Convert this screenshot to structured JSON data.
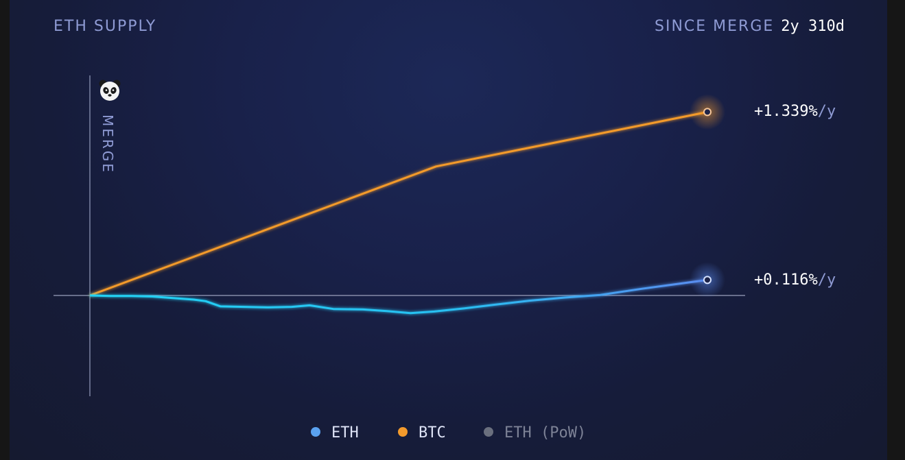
{
  "header": {
    "title": "ETH SUPPLY",
    "since_label": "SINCE MERGE",
    "since_value": "2y 310d"
  },
  "chart_data": {
    "type": "line",
    "title": "ETH SUPPLY",
    "vertical_marker": "MERGE",
    "x_range_days": [
      0,
      1040
    ],
    "y_range_pct": [
      -1.0,
      4.5
    ],
    "legend_placement": "bottom",
    "grid": false,
    "series": [
      {
        "name": "ETH",
        "color": "#5aa2f0",
        "color_highlight": "#22d3f5",
        "end_label": "+0.116%",
        "end_label_unit": "/y",
        "points": [
          [
            0,
            0.0
          ],
          [
            35,
            -0.01
          ],
          [
            70,
            -0.01
          ],
          [
            105,
            -0.02
          ],
          [
            140,
            -0.05
          ],
          [
            175,
            -0.08
          ],
          [
            195,
            -0.11
          ],
          [
            220,
            -0.21
          ],
          [
            260,
            -0.22
          ],
          [
            300,
            -0.23
          ],
          [
            340,
            -0.22
          ],
          [
            370,
            -0.19
          ],
          [
            410,
            -0.26
          ],
          [
            460,
            -0.27
          ],
          [
            500,
            -0.3
          ],
          [
            540,
            -0.34
          ],
          [
            580,
            -0.31
          ],
          [
            630,
            -0.25
          ],
          [
            680,
            -0.18
          ],
          [
            740,
            -0.1
          ],
          [
            800,
            -0.04
          ],
          [
            860,
            0.01
          ],
          [
            930,
            0.13
          ],
          [
            1040,
            0.3
          ]
        ]
      },
      {
        "name": "BTC",
        "color": "#f39a2c",
        "end_label": "+1.339%",
        "end_label_unit": "/y",
        "points": [
          [
            0,
            0.0
          ],
          [
            583,
            2.49
          ],
          [
            1040,
            3.54
          ]
        ]
      },
      {
        "name": "ETH (PoW)",
        "color": "#6a6f7e",
        "points": []
      }
    ]
  }
}
